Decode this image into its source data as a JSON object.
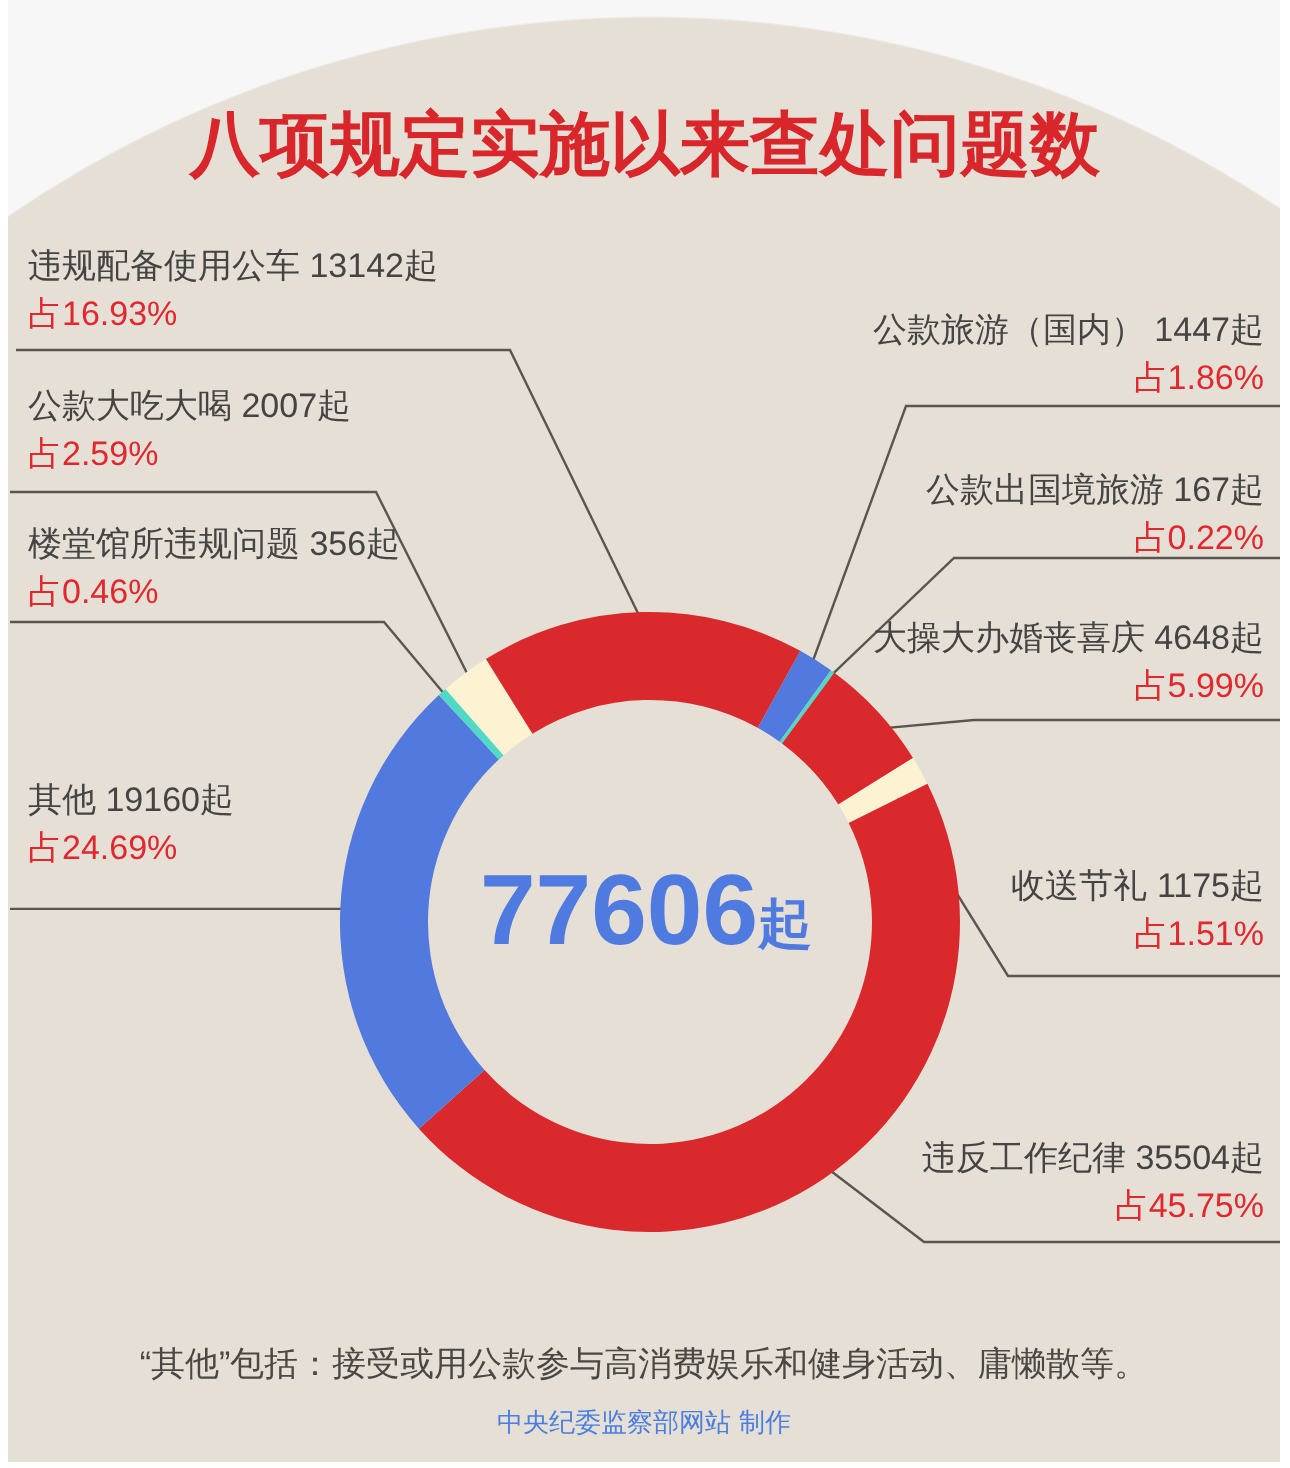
{
  "chart_data": {
    "type": "donut",
    "title": "八项规定实施以来查处问题数",
    "categories": [
      "公款旅游（国内）",
      "公款出国境旅游",
      "大操大办婚丧喜庆",
      "收送节礼",
      "违反工作纪律",
      "其他",
      "楼堂馆所违规问题",
      "公款大吃大喝",
      "违规配备使用公车"
    ],
    "values": [
      1447,
      167,
      4648,
      1175,
      35504,
      19160,
      356,
      2007,
      13142
    ],
    "colors": [
      "#5179de",
      "#4fd9c6",
      "#d9292c",
      "#fdf3d3",
      "#d9292c",
      "#5179de",
      "#4fd9c6",
      "#fdf3d3",
      "#d9292c"
    ],
    "value_labels": [
      "1447起占1.86%",
      "167起占0.22%",
      "4648起占5.99%",
      "1175起占1.51%",
      "35504起占45.75%",
      "19160起占24.69%",
      "356起占0.46%",
      "2007起占2.59%",
      "13142起占16.93%"
    ],
    "annotations": [
      "77606起",
      "“其他”包括：接受或用公款参与高消费娱乐和健身活动、庸懒散等。",
      "中央纪委监察部网站 制作"
    ]
  }
}
